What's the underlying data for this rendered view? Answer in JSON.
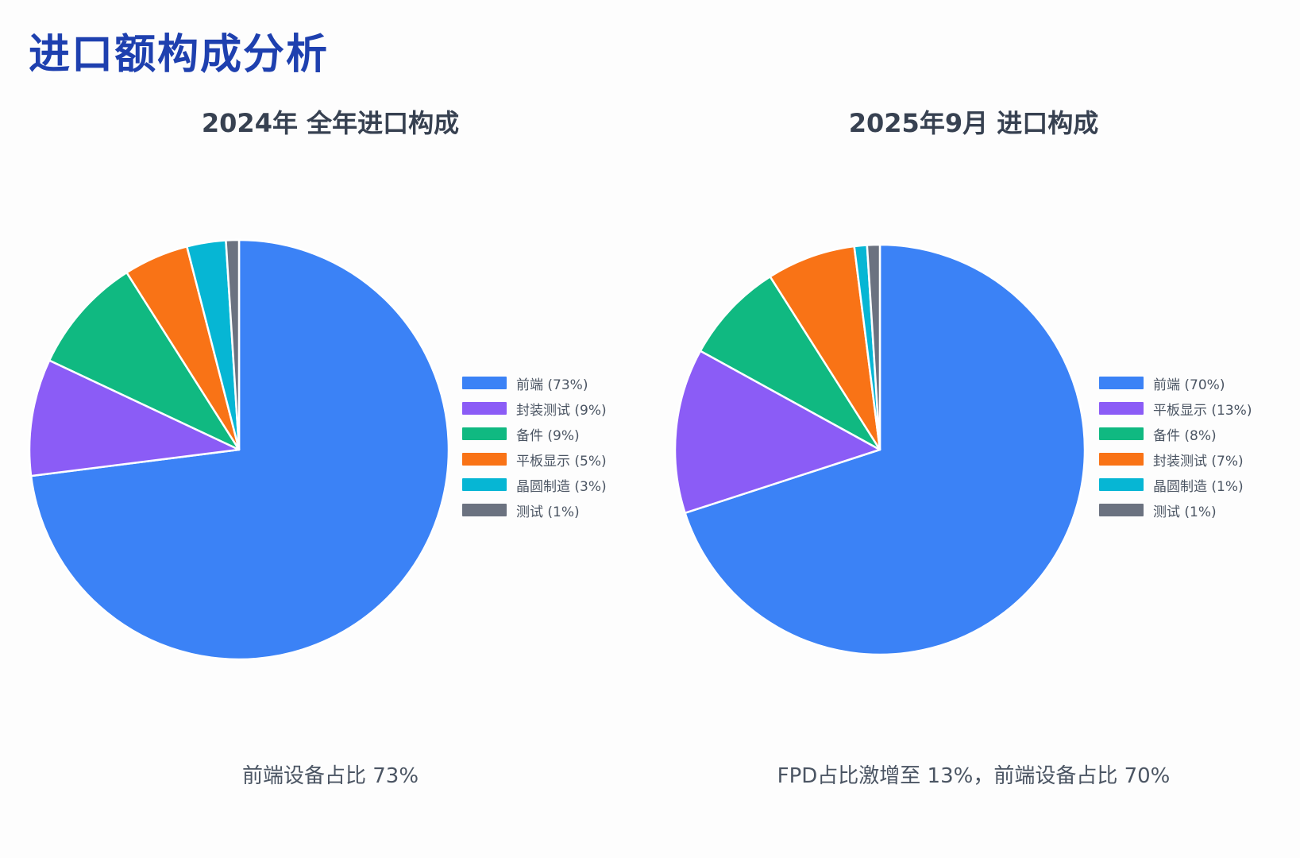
{
  "page": {
    "title": "进口额构成分析"
  },
  "chart_data": [
    {
      "type": "pie",
      "title": "2024年 全年进口构成",
      "caption": "前端设备占比 73%",
      "slices": [
        {
          "label": "前端 (73%)",
          "value": 73,
          "color": "#3b82f6"
        },
        {
          "label": "封装测试 (9%)",
          "value": 9,
          "color": "#8b5cf6"
        },
        {
          "label": "备件 (9%)",
          "value": 9,
          "color": "#10b981"
        },
        {
          "label": "平板显示 (5%)",
          "value": 5,
          "color": "#f97316"
        },
        {
          "label": "晶圆制造 (3%)",
          "value": 3,
          "color": "#06b6d4"
        },
        {
          "label": "测试 (1%)",
          "value": 1,
          "color": "#6b7280"
        }
      ]
    },
    {
      "type": "pie",
      "title": "2025年9月 进口构成",
      "caption": "FPD占比激增至 13%，前端设备占比 70%",
      "slices": [
        {
          "label": "前端 (70%)",
          "value": 70,
          "color": "#3b82f6"
        },
        {
          "label": "平板显示 (13%)",
          "value": 13,
          "color": "#8b5cf6"
        },
        {
          "label": "备件 (8%)",
          "value": 8,
          "color": "#10b981"
        },
        {
          "label": "封装测试 (7%)",
          "value": 7,
          "color": "#f97316"
        },
        {
          "label": "晶圆制造 (1%)",
          "value": 1,
          "color": "#06b6d4"
        },
        {
          "label": "测试 (1%)",
          "value": 1,
          "color": "#6b7280"
        }
      ]
    }
  ]
}
